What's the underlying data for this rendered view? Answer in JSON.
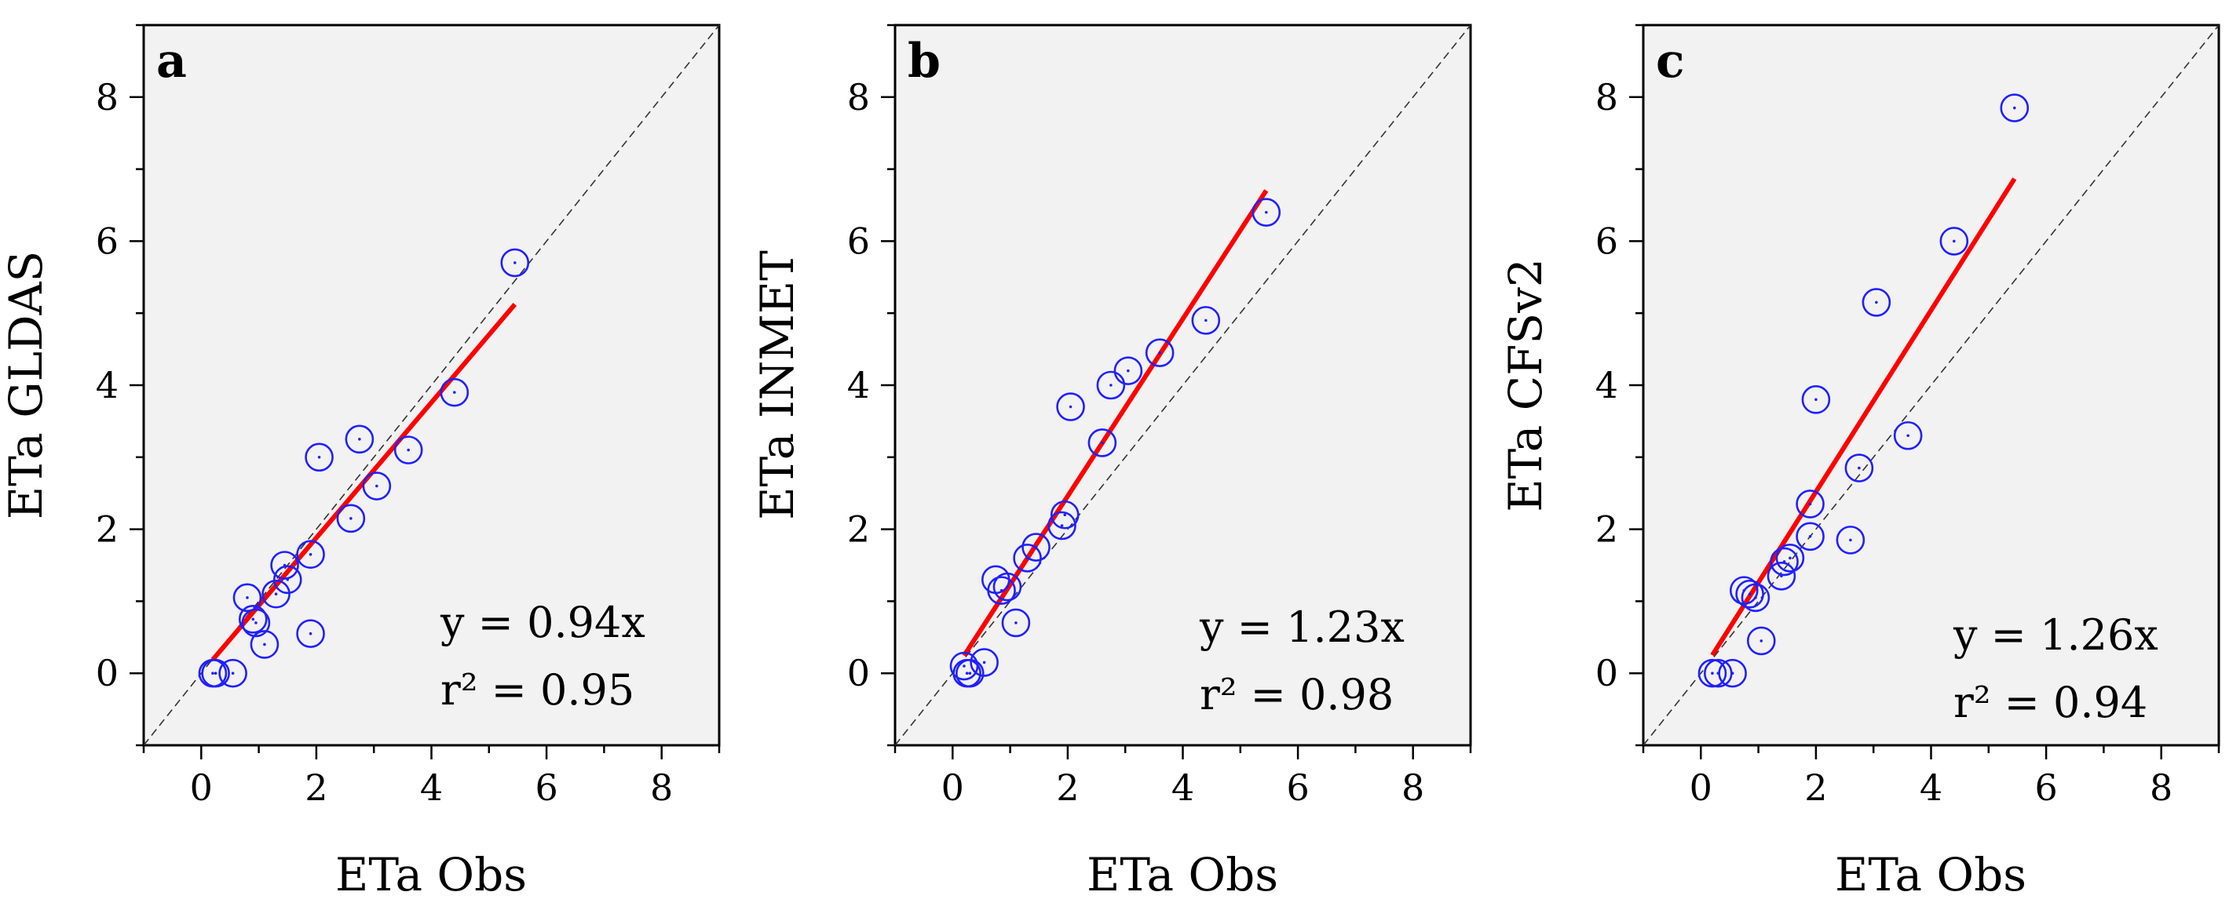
{
  "chart_data": [
    {
      "panel": "a",
      "type": "scatter",
      "xlabel": "ETa Obs",
      "ylabel": "ETa GLDAS",
      "xlim": [
        -1,
        9
      ],
      "ylim": [
        -1,
        9
      ],
      "xticks": [
        0,
        2,
        4,
        6,
        8
      ],
      "yticks": [
        0,
        2,
        4,
        6,
        8
      ],
      "equation": "y = 0.94x",
      "r2": "r² = 0.95",
      "slope": 0.94,
      "fit_x_range": [
        0.2,
        5.45
      ],
      "points": [
        [
          0.2,
          0.0
        ],
        [
          0.25,
          0.0
        ],
        [
          0.55,
          0.0
        ],
        [
          0.8,
          1.05
        ],
        [
          0.9,
          0.75
        ],
        [
          0.95,
          0.7
        ],
        [
          1.1,
          0.4
        ],
        [
          1.3,
          1.1
        ],
        [
          1.45,
          1.5
        ],
        [
          1.5,
          1.3
        ],
        [
          1.9,
          1.65
        ],
        [
          1.9,
          0.55
        ],
        [
          2.05,
          3.0
        ],
        [
          2.6,
          2.15
        ],
        [
          2.75,
          3.25
        ],
        [
          3.05,
          2.6
        ],
        [
          3.6,
          3.1
        ],
        [
          4.4,
          3.9
        ],
        [
          5.45,
          5.7
        ]
      ]
    },
    {
      "panel": "b",
      "type": "scatter",
      "xlabel": "ETa Obs",
      "ylabel": "ETa INMET",
      "xlim": [
        -1,
        9
      ],
      "ylim": [
        -1,
        9
      ],
      "xticks": [
        0,
        2,
        4,
        6,
        8
      ],
      "yticks": [
        0,
        2,
        4,
        6,
        8
      ],
      "equation": "y = 1.23x",
      "r2": "r² = 0.98",
      "slope": 1.23,
      "fit_x_range": [
        0.2,
        5.45
      ],
      "points": [
        [
          0.2,
          0.1
        ],
        [
          0.25,
          0.0
        ],
        [
          0.3,
          0.0
        ],
        [
          0.55,
          0.15
        ],
        [
          0.75,
          1.3
        ],
        [
          0.85,
          1.15
        ],
        [
          0.95,
          1.2
        ],
        [
          1.1,
          0.7
        ],
        [
          1.3,
          1.6
        ],
        [
          1.45,
          1.75
        ],
        [
          1.9,
          2.05
        ],
        [
          1.95,
          2.2
        ],
        [
          2.05,
          3.7
        ],
        [
          2.6,
          3.2
        ],
        [
          2.75,
          4.0
        ],
        [
          3.05,
          4.2
        ],
        [
          3.6,
          4.45
        ],
        [
          4.4,
          4.9
        ],
        [
          5.45,
          6.4
        ]
      ]
    },
    {
      "panel": "c",
      "type": "scatter",
      "xlabel": "ETa Obs",
      "ylabel": "ETa CFSv2",
      "xlim": [
        -1,
        9
      ],
      "ylim": [
        -1,
        9
      ],
      "xticks": [
        0,
        2,
        4,
        6,
        8
      ],
      "yticks": [
        0,
        2,
        4,
        6,
        8
      ],
      "equation": "y = 1.26x",
      "r2": "r² = 0.94",
      "slope": 1.26,
      "fit_x_range": [
        0.2,
        5.45
      ],
      "points": [
        [
          0.2,
          0.0
        ],
        [
          0.3,
          0.0
        ],
        [
          0.55,
          0.0
        ],
        [
          0.75,
          1.15
        ],
        [
          0.85,
          1.1
        ],
        [
          0.95,
          1.05
        ],
        [
          1.05,
          0.45
        ],
        [
          1.4,
          1.35
        ],
        [
          1.45,
          1.55
        ],
        [
          1.55,
          1.6
        ],
        [
          1.9,
          1.9
        ],
        [
          1.9,
          2.35
        ],
        [
          2.0,
          3.8
        ],
        [
          2.6,
          1.85
        ],
        [
          2.75,
          2.85
        ],
        [
          3.05,
          5.15
        ],
        [
          3.6,
          3.3
        ],
        [
          4.4,
          6.0
        ],
        [
          5.45,
          7.85
        ]
      ]
    }
  ]
}
